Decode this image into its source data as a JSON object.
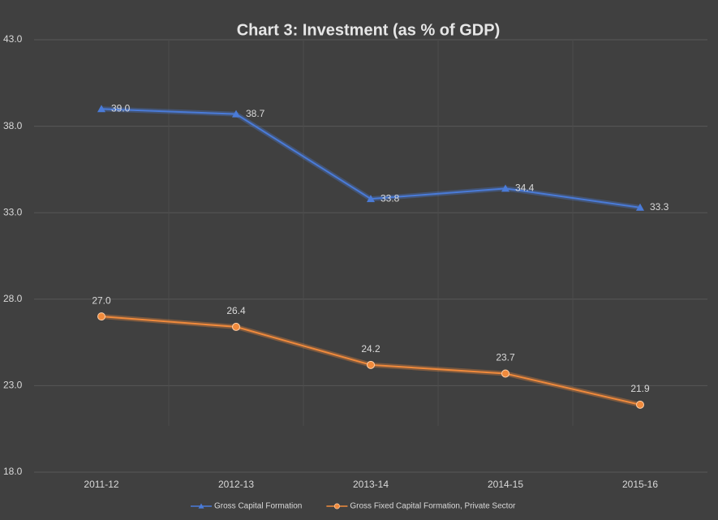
{
  "chart_data": {
    "type": "line",
    "title": "Chart 3: Investment (as % of GDP)",
    "categories": [
      "2011-12",
      "2012-13",
      "2013-14",
      "2014-15",
      "2015-16"
    ],
    "series": [
      {
        "name": "Gross Capital Formation",
        "color": "#4a7bd8",
        "marker": "triangle",
        "values": [
          39.0,
          38.7,
          33.8,
          34.4,
          33.3
        ],
        "value_labels": [
          "39.0",
          "38.7",
          "33.8",
          "34.4",
          "33.3"
        ]
      },
      {
        "name": "Gross Fixed Capital Formation, Private Sector",
        "color": "#f08a3c",
        "marker": "circle",
        "values": [
          27.0,
          26.4,
          24.2,
          23.7,
          21.9
        ],
        "value_labels": [
          "27.0",
          "26.4",
          "24.2",
          "23.7",
          "21.9"
        ]
      }
    ],
    "ylim": [
      18,
      43
    ],
    "yticks": [
      {
        "value": 18,
        "label": "18.0"
      },
      {
        "value": 23,
        "label": "23.0"
      },
      {
        "value": 28,
        "label": "28.0"
      },
      {
        "value": 33,
        "label": "33.0"
      },
      {
        "value": 38,
        "label": "38.0"
      },
      {
        "value": 43,
        "label": "43.0"
      }
    ],
    "grid": true,
    "legend": "bottom"
  }
}
